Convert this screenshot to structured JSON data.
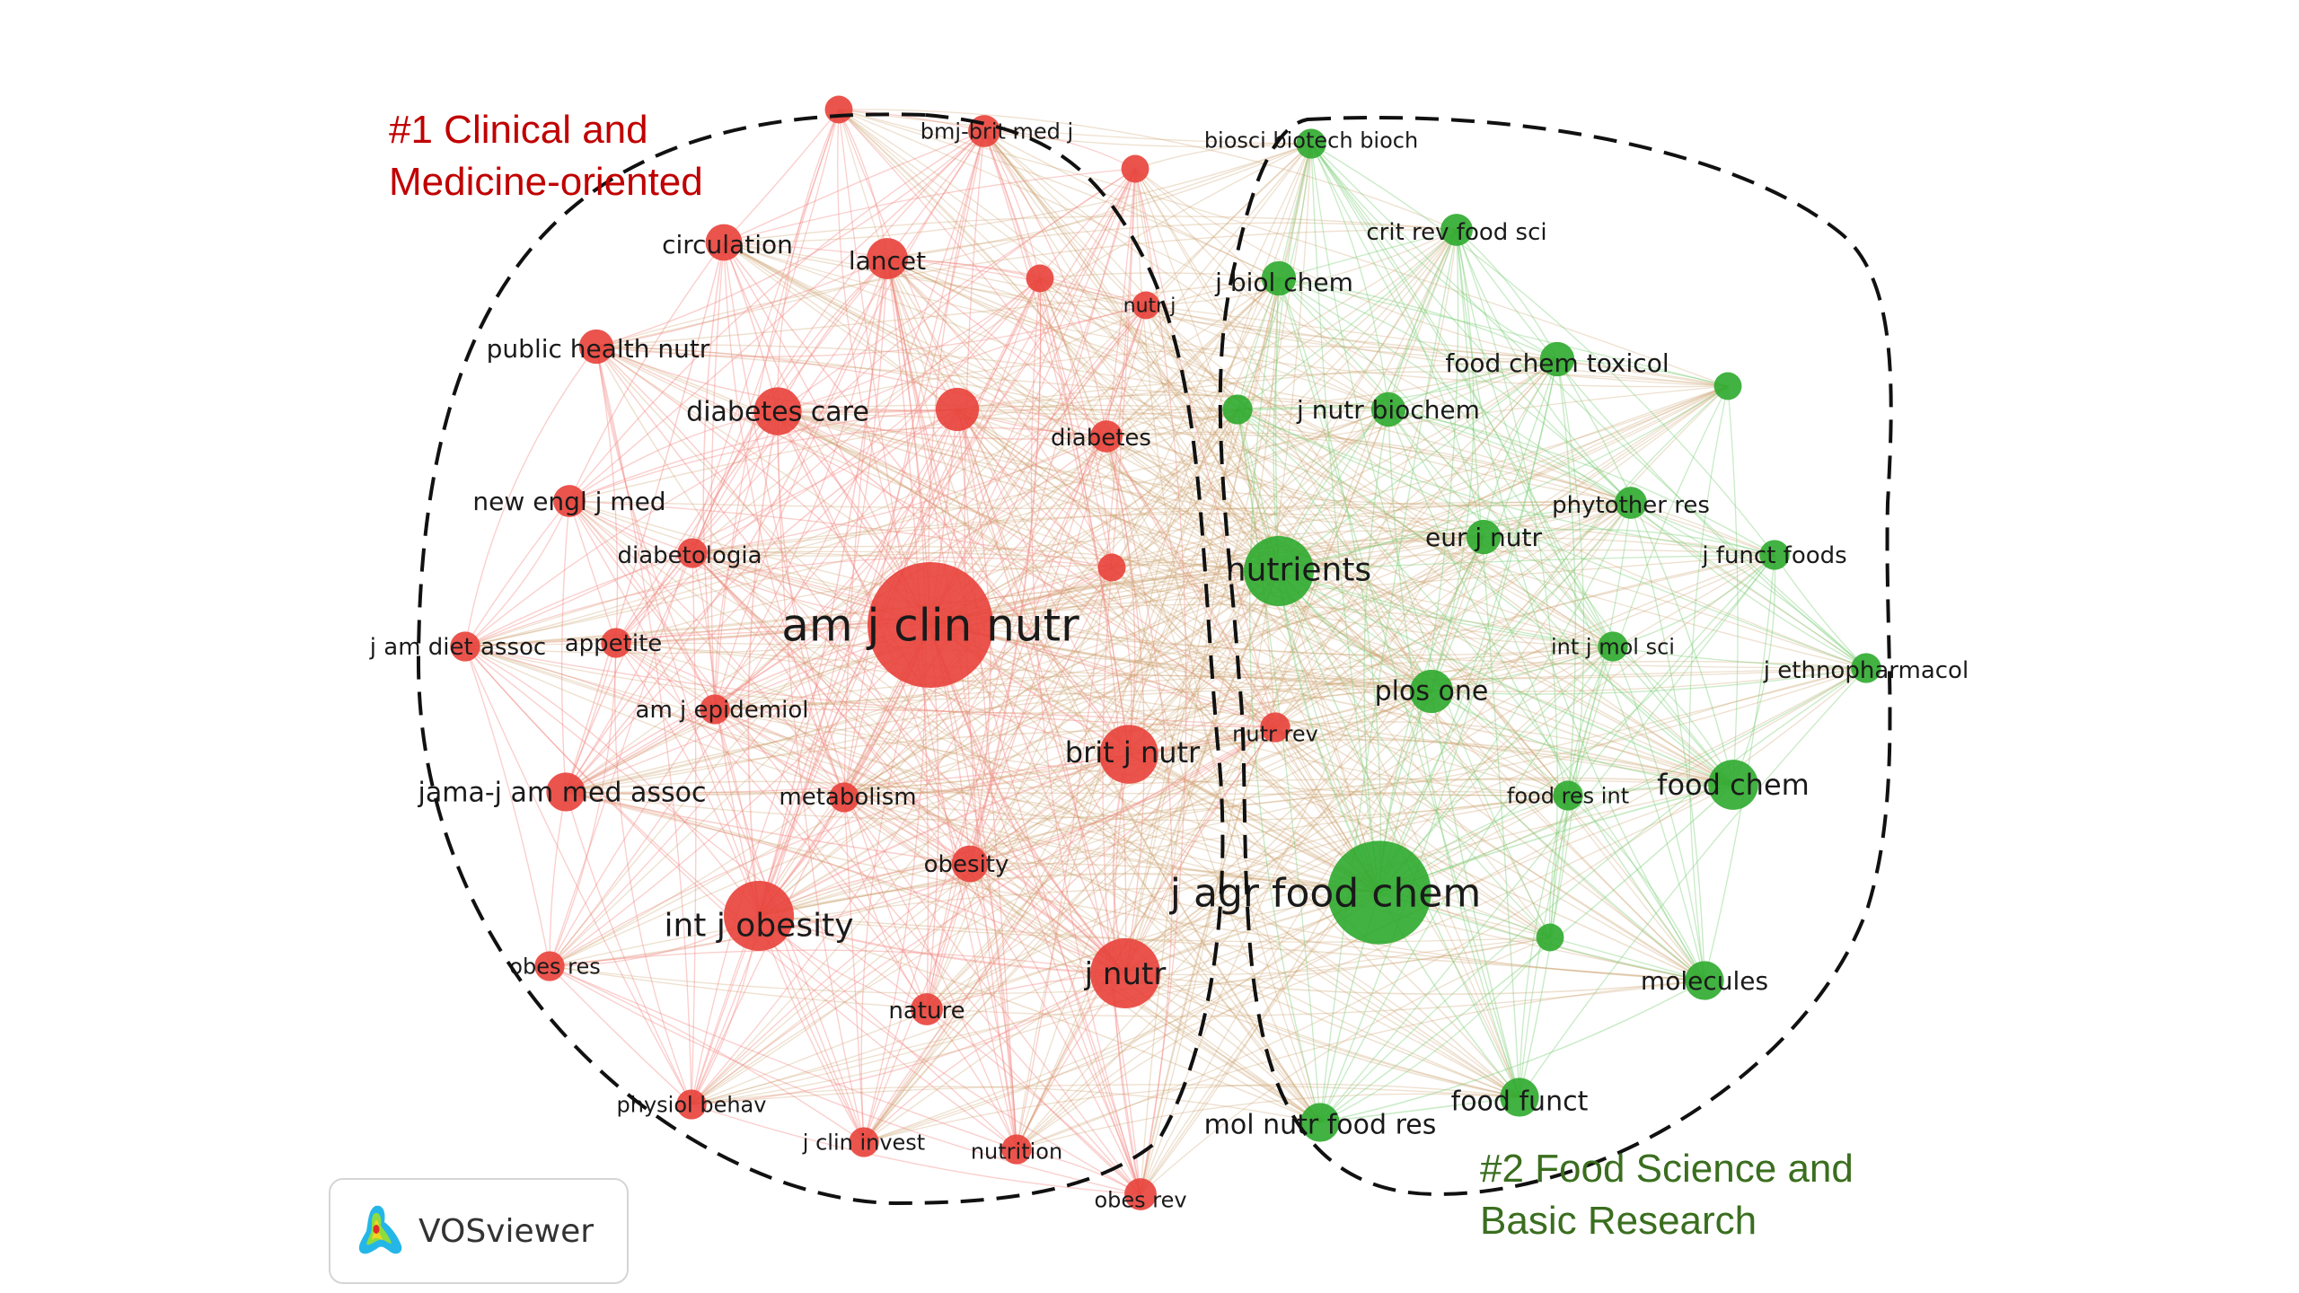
{
  "colors": {
    "cluster1": "#e8413a",
    "cluster2": "#2eaa2e",
    "cluster1_title": "#c00000",
    "cluster2_title": "#3a6e1f",
    "edge1": "#f28b86",
    "edge2": "#7fd07a",
    "edge_mixed": "#c9a06a"
  },
  "clusters": [
    {
      "id": 1,
      "title_lines": [
        "#1 Clinical and",
        "Medicine-oriented"
      ]
    },
    {
      "id": 2,
      "title_lines": [
        "#2 Food Science and",
        "Basic Research"
      ]
    }
  ],
  "watermark": {
    "label": "VOSviewer",
    "icon": "vosviewer-logo-icon"
  },
  "nodes": [
    {
      "label": "am j clin nutr",
      "cluster": 1,
      "weight": 10
    },
    {
      "label": "j nutr",
      "cluster": 1,
      "weight": 5
    },
    {
      "label": "int j obesity",
      "cluster": 1,
      "weight": 5
    },
    {
      "label": "brit j nutr",
      "cluster": 1,
      "weight": 4
    },
    {
      "label": "diabetes care",
      "cluster": 1,
      "weight": 3
    },
    {
      "label": "",
      "cluster": 1,
      "weight": 2.6
    },
    {
      "label": "lancet",
      "cluster": 1,
      "weight": 2.4
    },
    {
      "label": "circulation",
      "cluster": 1,
      "weight": 2
    },
    {
      "label": "public health nutr",
      "cluster": 1,
      "weight": 1.8
    },
    {
      "label": "new engl j med",
      "cluster": 1,
      "weight": 1.6
    },
    {
      "label": "diabetologia",
      "cluster": 1,
      "weight": 1.4
    },
    {
      "label": "diabetes",
      "cluster": 1,
      "weight": 1.6
    },
    {
      "label": "j am diet assoc",
      "cluster": 1,
      "weight": 1.4
    },
    {
      "label": "appetite",
      "cluster": 1,
      "weight": 1.4
    },
    {
      "label": "am j epidemiol",
      "cluster": 1,
      "weight": 1.4
    },
    {
      "label": "jama-j am med assoc",
      "cluster": 1,
      "weight": 2.2
    },
    {
      "label": "metabolism",
      "cluster": 1,
      "weight": 1.4
    },
    {
      "label": "obesity",
      "cluster": 1,
      "weight": 2
    },
    {
      "label": "obes res",
      "cluster": 1,
      "weight": 1.4
    },
    {
      "label": "nature",
      "cluster": 1,
      "weight": 1.6
    },
    {
      "label": "physiol behav",
      "cluster": 1,
      "weight": 1.4
    },
    {
      "label": "j clin invest",
      "cluster": 1,
      "weight": 1.4
    },
    {
      "label": "nutrition",
      "cluster": 1,
      "weight": 1.4
    },
    {
      "label": "obes rev",
      "cluster": 1,
      "weight": 1.6
    },
    {
      "label": "bmj-brit med j",
      "cluster": 1,
      "weight": 1.6
    },
    {
      "label": "",
      "cluster": 1,
      "weight": 1.2
    },
    {
      "label": "",
      "cluster": 1,
      "weight": 1.2
    },
    {
      "label": "",
      "cluster": 1,
      "weight": 1.2
    },
    {
      "label": "nutr j",
      "cluster": 1,
      "weight": 1.2
    },
    {
      "label": "nutr rev",
      "cluster": 1,
      "weight": 1.4
    },
    {
      "label": "",
      "cluster": 1,
      "weight": 1.2
    },
    {
      "label": "j agr food chem",
      "cluster": 2,
      "weight": 8
    },
    {
      "label": "nutrients",
      "cluster": 2,
      "weight": 5
    },
    {
      "label": "food chem",
      "cluster": 2,
      "weight": 3.2
    },
    {
      "label": "plos one",
      "cluster": 2,
      "weight": 2.6
    },
    {
      "label": "molecules",
      "cluster": 2,
      "weight": 2.2
    },
    {
      "label": "food funct",
      "cluster": 2,
      "weight": 2.2
    },
    {
      "label": "mol nutr food res",
      "cluster": 2,
      "weight": 2.2
    },
    {
      "label": "eur j nutr",
      "cluster": 2,
      "weight": 1.8
    },
    {
      "label": "j nutr biochem",
      "cluster": 2,
      "weight": 1.8
    },
    {
      "label": "j biol chem",
      "cluster": 2,
      "weight": 1.8
    },
    {
      "label": "food chem toxicol",
      "cluster": 2,
      "weight": 1.8
    },
    {
      "label": "crit rev food sci",
      "cluster": 2,
      "weight": 1.6
    },
    {
      "label": "biosci biotech bioch",
      "cluster": 2,
      "weight": 1.4
    },
    {
      "label": "phytother res",
      "cluster": 2,
      "weight": 1.6
    },
    {
      "label": "j funct foods",
      "cluster": 2,
      "weight": 1.4
    },
    {
      "label": "int j mol sci",
      "cluster": 2,
      "weight": 1.4
    },
    {
      "label": "j ethnopharmacol",
      "cluster": 2,
      "weight": 1.4
    },
    {
      "label": "food res int",
      "cluster": 2,
      "weight": 1.4
    },
    {
      "label": "",
      "cluster": 2,
      "weight": 1.4
    },
    {
      "label": "",
      "cluster": 2,
      "weight": 1.2
    },
    {
      "label": "",
      "cluster": 2,
      "weight": 1.2
    }
  ]
}
